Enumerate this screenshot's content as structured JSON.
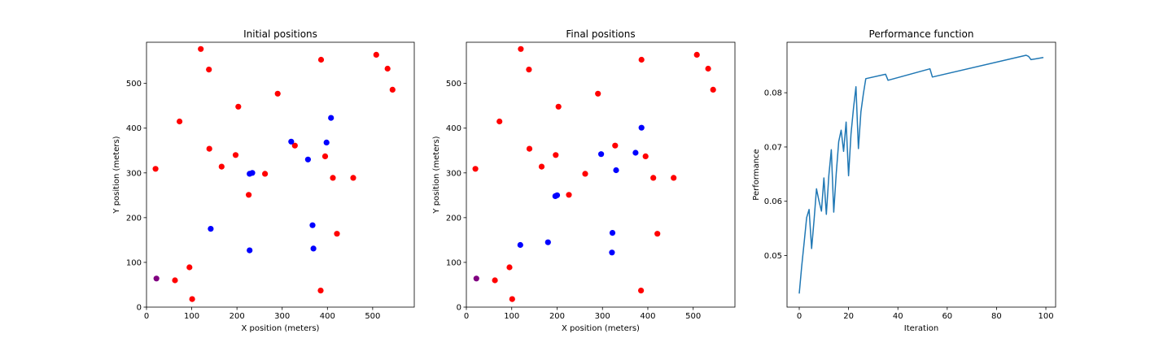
{
  "colors": {
    "red": "#ff0000",
    "blue": "#0000ff",
    "purple": "#800080",
    "line": "#1f77b4"
  },
  "chart_data": [
    {
      "type": "scatter",
      "title": "Initial positions",
      "xlabel": "X position (meters)",
      "ylabel": "Y position (meters)",
      "xlim": [
        0,
        592
      ],
      "ylim": [
        0,
        592
      ],
      "xticks": [
        0,
        100,
        200,
        300,
        400,
        500
      ],
      "yticks": [
        0,
        100,
        200,
        300,
        400,
        500
      ],
      "grid": false,
      "series": [
        {
          "color": "red",
          "points": [
            [
              120,
              577
            ],
            [
              138,
              531
            ],
            [
              508,
              564
            ],
            [
              533,
              533
            ],
            [
              544,
              486
            ],
            [
              386,
              553
            ],
            [
              73,
              415
            ],
            [
              203,
              448
            ],
            [
              290,
              477
            ],
            [
              139,
              354
            ],
            [
              20,
              309
            ],
            [
              166,
              314
            ],
            [
              197,
              340
            ],
            [
              328,
              361
            ],
            [
              395,
              337
            ],
            [
              262,
              298
            ],
            [
              412,
              289
            ],
            [
              457,
              289
            ],
            [
              226,
              251
            ],
            [
              421,
              164
            ],
            [
              95,
              89
            ],
            [
              63,
              60
            ],
            [
              101,
              18
            ],
            [
              385,
              37
            ]
          ]
        },
        {
          "color": "blue",
          "points": [
            [
              408,
              423
            ],
            [
              320,
              370
            ],
            [
              398,
              368
            ],
            [
              357,
              330
            ],
            [
              228,
              298
            ],
            [
              234,
              300
            ],
            [
              367,
              183
            ],
            [
              142,
              175
            ],
            [
              369,
              131
            ],
            [
              228,
              127
            ]
          ]
        },
        {
          "color": "purple",
          "points": [
            [
              22,
              64
            ]
          ]
        }
      ]
    },
    {
      "type": "scatter",
      "title": "Final positions",
      "xlabel": "X position (meters)",
      "ylabel": "Y position (meters)",
      "xlim": [
        0,
        592
      ],
      "ylim": [
        0,
        592
      ],
      "xticks": [
        0,
        100,
        200,
        300,
        400,
        500
      ],
      "yticks": [
        0,
        100,
        200,
        300,
        400,
        500
      ],
      "grid": false,
      "series": [
        {
          "color": "red",
          "points": [
            [
              120,
              577
            ],
            [
              138,
              531
            ],
            [
              508,
              564
            ],
            [
              533,
              533
            ],
            [
              544,
              486
            ],
            [
              386,
              553
            ],
            [
              73,
              415
            ],
            [
              203,
              448
            ],
            [
              290,
              477
            ],
            [
              139,
              354
            ],
            [
              20,
              309
            ],
            [
              166,
              314
            ],
            [
              197,
              340
            ],
            [
              328,
              361
            ],
            [
              395,
              337
            ],
            [
              262,
              298
            ],
            [
              412,
              289
            ],
            [
              457,
              289
            ],
            [
              226,
              251
            ],
            [
              421,
              164
            ],
            [
              95,
              89
            ],
            [
              63,
              60
            ],
            [
              101,
              18
            ],
            [
              385,
              37
            ]
          ]
        },
        {
          "color": "blue",
          "points": [
            [
              386,
              401
            ],
            [
              297,
              342
            ],
            [
              373,
              345
            ],
            [
              330,
              306
            ],
            [
              196,
              248
            ],
            [
              200,
              250
            ],
            [
              322,
              166
            ],
            [
              180,
              145
            ],
            [
              119,
              139
            ],
            [
              321,
              122
            ]
          ]
        },
        {
          "color": "purple",
          "points": [
            [
              22,
              64
            ]
          ]
        }
      ]
    },
    {
      "type": "line",
      "title": "Performance function",
      "xlabel": "Iteration",
      "ylabel": "Performance",
      "xlim": [
        -4.95,
        103.95
      ],
      "ylim": [
        0.0405,
        0.0893
      ],
      "xticks": [
        0,
        20,
        40,
        60,
        80,
        100
      ],
      "yticks": [
        0.05,
        0.06,
        0.07,
        0.08
      ],
      "ytick_labels": [
        "0.05",
        "0.06",
        "0.07",
        "0.08"
      ],
      "grid": false,
      "series": [
        {
          "color": "line",
          "x": [
            0,
            1,
            2,
            3,
            4,
            5,
            6,
            7,
            8,
            9,
            10,
            11,
            12,
            13,
            14,
            15,
            16,
            17,
            18,
            19,
            20,
            21,
            22,
            23,
            24,
            25,
            26,
            27,
            35,
            36,
            53,
            54,
            92,
            93,
            94,
            99
          ],
          "y": [
            0.043,
            0.048,
            0.0525,
            0.057,
            0.0585,
            0.0513,
            0.0565,
            0.0623,
            0.0601,
            0.0582,
            0.0643,
            0.0576,
            0.0648,
            0.0695,
            0.058,
            0.0652,
            0.071,
            0.0731,
            0.0692,
            0.0746,
            0.0647,
            0.0724,
            0.0772,
            0.0811,
            0.0697,
            0.0765,
            0.0798,
            0.0826,
            0.0834,
            0.0823,
            0.0844,
            0.0829,
            0.0869,
            0.0867,
            0.0861,
            0.0865
          ]
        }
      ]
    }
  ]
}
